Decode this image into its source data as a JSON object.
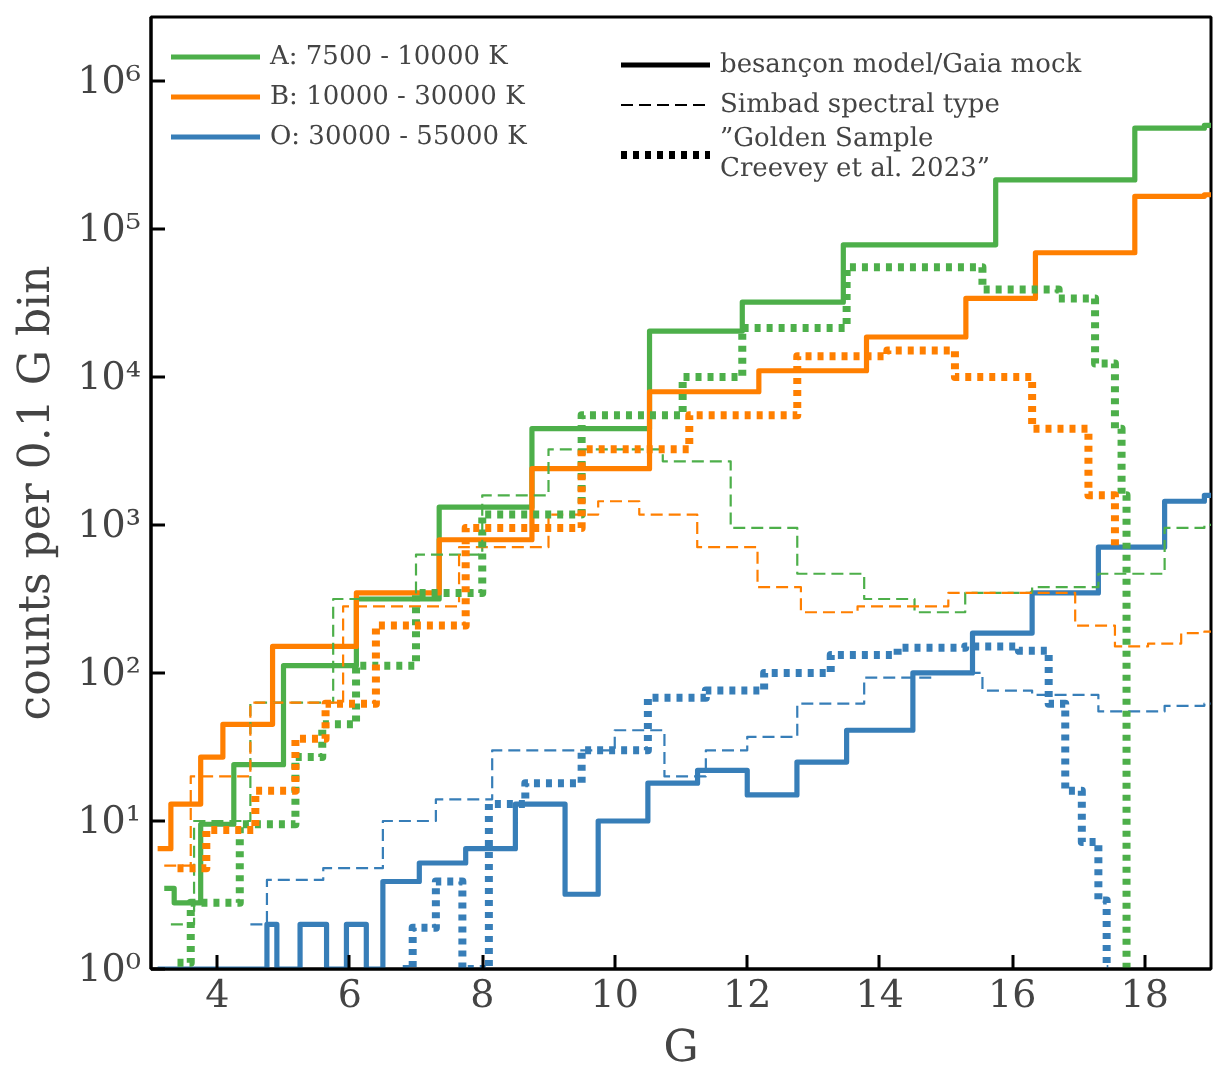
{
  "chart_data": {
    "type": "step",
    "xlabel": "G",
    "ylabel": "counts per 0.1 G bin",
    "log": "y",
    "xlim": [
      3,
      19
    ],
    "xticks": [
      4,
      6,
      8,
      10,
      12,
      14,
      16,
      18
    ],
    "ylim": [
      1,
      2700000
    ],
    "yticks": [
      {
        "value": 1,
        "label": "10⁰"
      },
      {
        "value": 10,
        "label": "10¹"
      },
      {
        "value": 100,
        "label": "10²"
      },
      {
        "value": 1000,
        "label": "10³"
      },
      {
        "value": 10000,
        "label": "10⁴"
      },
      {
        "value": 100000,
        "label": "10⁵"
      },
      {
        "value": 1000000,
        "label": "10⁶"
      }
    ],
    "grid": false,
    "legend": "top left",
    "annotations": [
      "besançon model/Gaia mock",
      "Simbad spectral type",
      "”Golden Sample\nCreevey et al. 2023”"
    ],
    "series": [
      {
        "name": "A: 7500 - 10000 K",
        "color": "#4daf4a",
        "line_style": "solid",
        "x": [
          3.2,
          3.5,
          4.0,
          4.5,
          5.5,
          6.7,
          8.0,
          9.5,
          11.55,
          12.3,
          14.6,
          16.9,
          18.8,
          19.0
        ],
        "values": [
          3.5,
          2.8,
          9.5,
          24,
          112,
          316,
          1318,
          4470,
          20400,
          32000,
          78000,
          214000,
          479000,
          500000
        ]
      },
      {
        "name": "B: 10000 - 30000 K",
        "color": "#ff7f00",
        "line_style": "solid",
        "x": [
          3.1,
          3.5,
          4.0,
          4.17,
          5.5,
          6.7,
          8.0,
          9.5,
          11.55,
          12.8,
          14.8,
          15.8,
          16.9,
          18.8,
          19.0
        ],
        "values": [
          6.5,
          13,
          27,
          45,
          151,
          347,
          794,
          2400,
          7940,
          11000,
          18600,
          33900,
          69000,
          166000,
          170000
        ]
      },
      {
        "name": "O: 30000 - 55000 K",
        "color": "#377eb8",
        "line_style": "solid",
        "x": [
          3.1,
          4.7,
          4.8,
          5.0,
          5.5,
          5.8,
          6.1,
          6.4,
          6.6,
          7.5,
          8.0,
          9.0,
          9.5,
          10.0,
          11.0,
          11.5,
          12.5,
          13.0,
          14.0,
          15.0,
          15.8,
          16.8,
          17.8,
          18.8,
          19.0
        ],
        "values": [
          1,
          1,
          2,
          1,
          2,
          1,
          2,
          1,
          3.9,
          5.2,
          6.5,
          13,
          3.2,
          10,
          18,
          22,
          15,
          25,
          41,
          100,
          186,
          347,
          708,
          1445,
          1585
        ]
      },
      {
        "color": "#4daf4a",
        "line_style": "dashed",
        "x": [
          3.3,
          4.0,
          5.0,
          6.5,
          7.5,
          8.5,
          9.5,
          10.2,
          11.25,
          12.25,
          13.26,
          14.27,
          14.78,
          15.8,
          16.8,
          17.8,
          18.8,
          19.0
        ],
        "values": [
          2,
          10,
          63,
          316,
          631,
          1585,
          3240,
          3240,
          2690,
          955,
          468,
          316,
          257,
          347,
          380,
          468,
          955,
          1000
        ]
      },
      {
        "color": "#ff7f00",
        "line_style": "dashed",
        "x": [
          3.2,
          4.0,
          5.0,
          6.8,
          8.5,
          9.5,
          10.0,
          10.74,
          11.75,
          12.56,
          13.06,
          14.27,
          15.8,
          16.6,
          17.3,
          17.8,
          18.3,
          18.8,
          19.0
        ],
        "values": [
          5,
          20,
          63,
          282,
          708,
          1175,
          1445,
          1175,
          708,
          380,
          257,
          282,
          347,
          347,
          209,
          151,
          158,
          186,
          190
        ]
      },
      {
        "color": "#377eb8",
        "line_style": "dashed",
        "x": [
          4.5,
          5.0,
          6.2,
          6.8,
          7.8,
          8.5,
          9.5,
          10.5,
          11.0,
          11.75,
          12.25,
          13.26,
          14.27,
          15.3,
          15.8,
          16.8,
          17.8,
          18.8,
          19.0
        ],
        "values": [
          2,
          4,
          4.8,
          10,
          14,
          30,
          30,
          41,
          20,
          30,
          37,
          62,
          93,
          100,
          76,
          71,
          55,
          60,
          62
        ]
      },
      {
        "color": "#4daf4a",
        "line_style": "dotted",
        "x": [
          3.4,
          3.8,
          4.88,
          5.48,
          5.69,
          6.5,
          7.5,
          8.5,
          10.5,
          11.55,
          12.3,
          14.7,
          16.4,
          17.0,
          17.5,
          17.6,
          17.7,
          17.75,
          17.8
        ],
        "values": [
          1.1,
          2.8,
          9.5,
          27,
          45,
          112,
          347,
          1175,
          5500,
          10000,
          21400,
          55000,
          38900,
          33900,
          12300,
          4470,
          1585,
          1,
          1
        ]
      },
      {
        "color": "#ff7f00",
        "line_style": "dotted",
        "x": [
          3.4,
          4.27,
          4.88,
          5.48,
          5.79,
          7.0,
          8.5,
          10.5,
          11.75,
          13.76,
          14.47,
          15.8,
          16.8,
          17.5,
          17.6
        ],
        "values": [
          4.8,
          8.7,
          16,
          36,
          62,
          209,
          955,
          3240,
          5500,
          13800,
          15100,
          10000,
          4470,
          1585,
          708
        ]
      },
      {
        "color": "#377eb8",
        "line_style": "dotted",
        "x": [
          6.8,
          7.1,
          7.5,
          7.9,
          8.3,
          9.0,
          10.0,
          11.0,
          11.75,
          12.76,
          13.76,
          14.78,
          15.8,
          16.4,
          16.7,
          16.9,
          17.2,
          17.4,
          17.45
        ],
        "values": [
          1,
          1.9,
          3.9,
          1,
          13,
          18,
          30,
          68,
          76,
          100,
          132,
          148,
          151,
          141,
          62,
          16,
          7.2,
          2.9,
          1
        ]
      }
    ]
  }
}
